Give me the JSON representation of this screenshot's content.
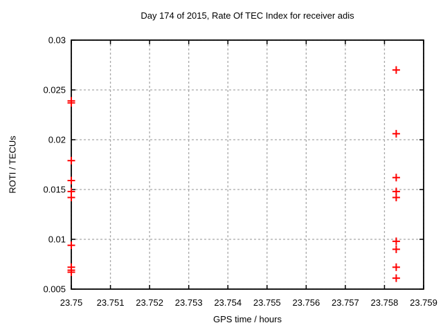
{
  "chart_data": {
    "type": "scatter",
    "title": "Day 174 of 2015, Rate Of TEC Index for receiver adis",
    "xlabel": "GPS time / hours",
    "ylabel": "ROTI / TECUs",
    "xlim": [
      23.75,
      23.759
    ],
    "ylim": [
      0.005,
      0.03
    ],
    "xtick_labels": [
      "23.75",
      "23.751",
      "23.752",
      "23.753",
      "23.754",
      "23.755",
      "23.756",
      "23.757",
      "23.758",
      "23.759"
    ],
    "ytick_labels": [
      "0.005",
      "0.01",
      "0.015",
      "0.02",
      "0.025",
      "0.03"
    ],
    "grid": true,
    "legend": "none",
    "marker": "plus",
    "marker_color": "#ff0000",
    "border_color": "#000000",
    "grid_color": "#a8a8a8",
    "series": [
      {
        "name": "ROTI",
        "points": [
          [
            23.75,
            0.0239
          ],
          [
            23.75,
            0.0237
          ],
          [
            23.75,
            0.0179
          ],
          [
            23.75,
            0.0159
          ],
          [
            23.75,
            0.0148
          ],
          [
            23.75,
            0.0142
          ],
          [
            23.75,
            0.0094
          ],
          [
            23.75,
            0.0072
          ],
          [
            23.75,
            0.0069
          ],
          [
            23.75,
            0.0067
          ],
          [
            23.7583,
            0.027
          ],
          [
            23.7583,
            0.0206
          ],
          [
            23.7583,
            0.0162
          ],
          [
            23.7583,
            0.0148
          ],
          [
            23.7583,
            0.0142
          ],
          [
            23.7583,
            0.0098
          ],
          [
            23.7583,
            0.009
          ],
          [
            23.7583,
            0.0072
          ],
          [
            23.7583,
            0.0061
          ]
        ]
      }
    ]
  }
}
